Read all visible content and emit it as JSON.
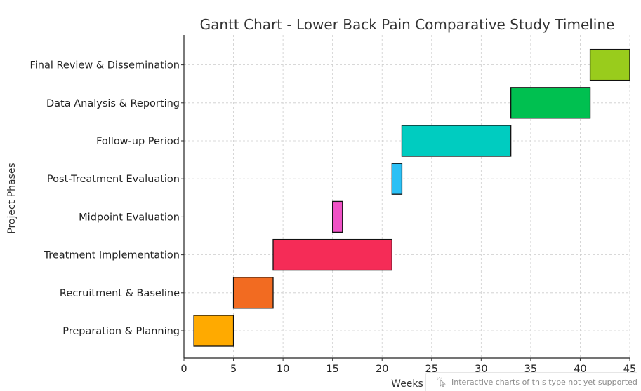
{
  "chart_data": {
    "type": "gantt",
    "title": "Gantt Chart - Lower Back Pain Comparative Study Timeline",
    "xlabel": "Weeks",
    "ylabel": "Project Phases",
    "xlim": [
      0,
      45
    ],
    "xticks": [
      0,
      5,
      10,
      15,
      20,
      25,
      30,
      35,
      40,
      45
    ],
    "grid": true,
    "tasks": [
      {
        "name": "Preparation & Planning",
        "start": 1,
        "end": 5,
        "color": "#FFAA00"
      },
      {
        "name": "Recruitment & Baseline",
        "start": 5,
        "end": 9,
        "color": "#F26B21"
      },
      {
        "name": "Treatment Implementation",
        "start": 9,
        "end": 21,
        "color": "#F52C57"
      },
      {
        "name": "Midpoint Evaluation",
        "start": 15,
        "end": 16,
        "color": "#F052C6"
      },
      {
        "name": "Post-Treatment Evaluation",
        "start": 21,
        "end": 22,
        "color": "#2CC0F5"
      },
      {
        "name": "Follow-up Period",
        "start": 22,
        "end": 33,
        "color": "#00CCC0"
      },
      {
        "name": "Data Analysis & Reporting",
        "start": 33,
        "end": 41,
        "color": "#00C050"
      },
      {
        "name": "Final Review & Dissemination",
        "start": 41,
        "end": 45,
        "color": "#99CC1C"
      }
    ]
  },
  "notice": {
    "text": "Interactive charts of this type not yet supported",
    "icon": "pointer-sparkle-icon"
  }
}
